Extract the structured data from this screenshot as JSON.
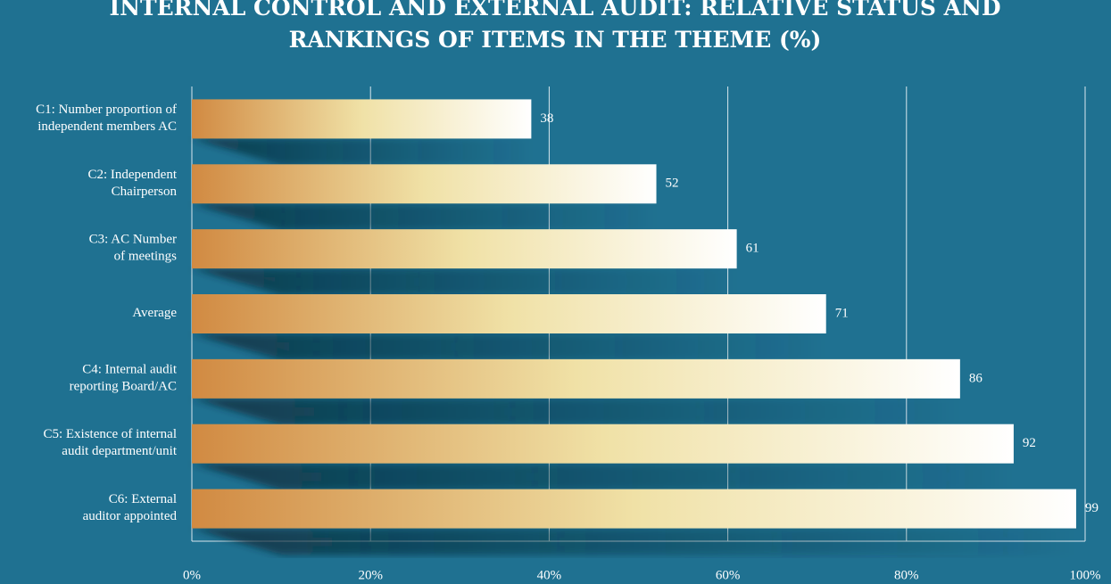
{
  "chart_data": {
    "type": "bar",
    "orientation": "horizontal",
    "title": "INTERNAL CONTROL AND EXTERNAL AUDIT: RELATIVE STATUS AND\nRANKINGS OF ITEMS IN THE THEME (%)",
    "categories": [
      "C1: Number proportion of\nindependent members AC",
      "C2: Independent\nChairperson",
      "C3: AC Number\nof meetings",
      "Average",
      "C4: Internal audit\nreporting Board/AC",
      "C5: Existence of internal\naudit department/unit",
      "C6: External\nauditor appointed"
    ],
    "values": [
      38,
      52,
      61,
      71,
      86,
      92,
      99
    ],
    "xlim": [
      0,
      100
    ],
    "xticks": [
      {
        "value": 0,
        "label": "0%"
      },
      {
        "value": 20,
        "label": "20%"
      },
      {
        "value": 40,
        "label": "40%"
      },
      {
        "value": 60,
        "label": "60%"
      },
      {
        "value": 80,
        "label": "80%"
      },
      {
        "value": 100,
        "label": "100%"
      }
    ],
    "grid": true
  }
}
